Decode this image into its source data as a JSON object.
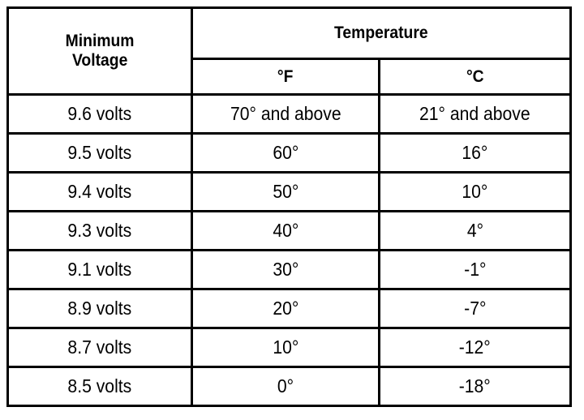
{
  "table": {
    "headers": {
      "voltage": [
        "Minimum",
        "Voltage"
      ],
      "temperature": "Temperature",
      "fahrenheit": "°F",
      "celsius": "°C"
    },
    "rows": [
      {
        "voltage": "9.6 volts",
        "f": "70° and above",
        "c": "21° and above"
      },
      {
        "voltage": "9.5 volts",
        "f": "60°",
        "c": "16°"
      },
      {
        "voltage": "9.4 volts",
        "f": "50°",
        "c": "10°"
      },
      {
        "voltage": "9.3 volts",
        "f": "40°",
        "c": "4°"
      },
      {
        "voltage": "9.1 volts",
        "f": "30°",
        "c": "-1°"
      },
      {
        "voltage": "8.9 volts",
        "f": "20°",
        "c": "-7°"
      },
      {
        "voltage": "8.7 volts",
        "f": "10°",
        "c": "-12°"
      },
      {
        "voltage": "8.5 volts",
        "f": "0°",
        "c": "-18°"
      }
    ]
  }
}
